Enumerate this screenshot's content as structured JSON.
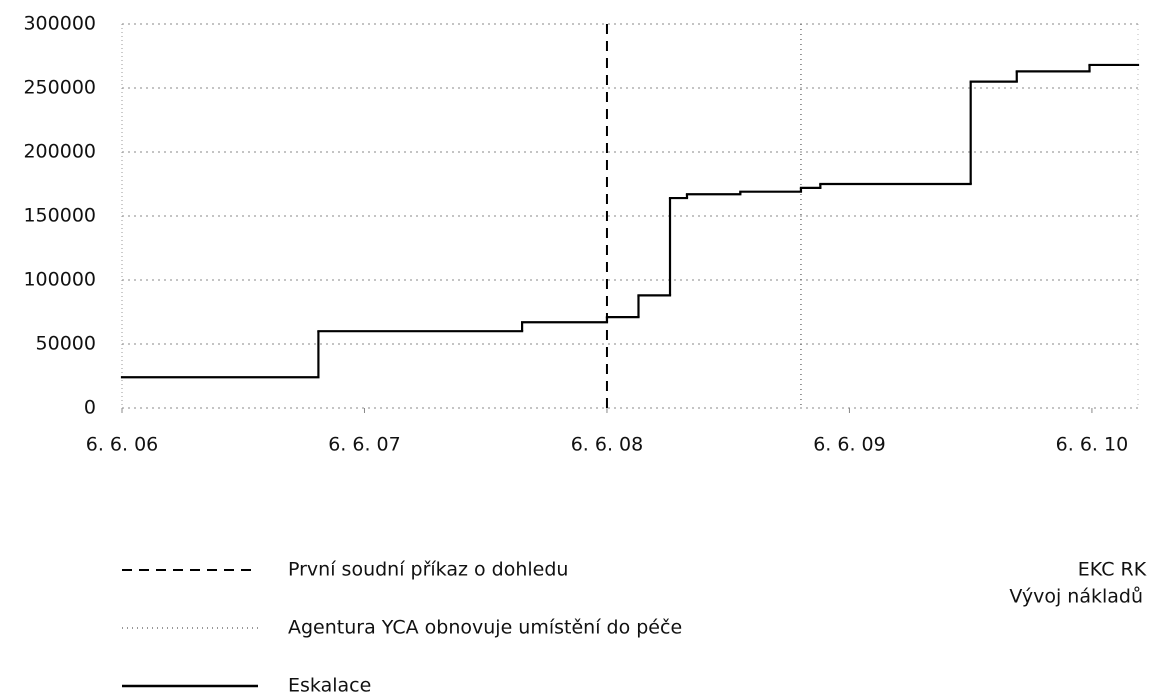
{
  "chart_data": {
    "type": "line",
    "step": "post",
    "x": [
      2006.43,
      2007.24,
      2008.08,
      2008.43,
      2008.56,
      2008.69,
      2008.76,
      2008.98,
      2009.23,
      2009.31,
      2009.93,
      2010.12,
      2010.42
    ],
    "series": [
      {
        "name": "Eskalace",
        "color": "#000000",
        "values": [
          24000,
          60000,
          67000,
          71000,
          88000,
          164000,
          167000,
          169000,
          172000,
          175000,
          255000,
          263000,
          268000
        ]
      }
    ],
    "vlines": [
      {
        "name": "První soudní příkaz o dohledu",
        "x": 2008.43,
        "style": "dashed",
        "color": "#000000"
      },
      {
        "name": "Agentura YCA obnovuje umístění do péče",
        "x": 2009.23,
        "style": "dotted",
        "color": "#777777"
      }
    ],
    "xlim": [
      2006.43,
      2010.62
    ],
    "xticks": [
      {
        "value": 2006.43,
        "label": "6. 6. 06"
      },
      {
        "value": 2007.43,
        "label": "6. 6. 07"
      },
      {
        "value": 2008.43,
        "label": "6. 6. 08"
      },
      {
        "value": 2009.43,
        "label": "6. 6. 09"
      },
      {
        "value": 2010.43,
        "label": "6. 6. 10"
      }
    ],
    "ylim": [
      0,
      300000
    ],
    "yticks": [
      0,
      50000,
      100000,
      150000,
      200000,
      250000,
      300000
    ],
    "grid": true,
    "annotations": [
      "EKC RK",
      "Vývoj nákladů"
    ]
  }
}
